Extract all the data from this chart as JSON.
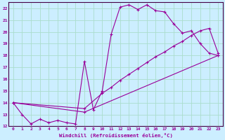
{
  "xlabel": "Windchill (Refroidissement éolien,°C)",
  "bg_color": "#cceeff",
  "grid_color": "#aaddcc",
  "line_color": "#990099",
  "xlim": [
    -0.5,
    23.5
  ],
  "ylim": [
    12,
    22.5
  ],
  "yticks": [
    12,
    13,
    14,
    15,
    16,
    17,
    18,
    19,
    20,
    21,
    22
  ],
  "xticks": [
    0,
    1,
    2,
    3,
    4,
    5,
    6,
    7,
    8,
    9,
    10,
    11,
    12,
    13,
    14,
    15,
    16,
    17,
    18,
    19,
    20,
    21,
    22,
    23
  ],
  "line1_x": [
    0,
    1,
    2,
    3,
    4,
    5,
    6,
    7,
    8,
    9,
    10,
    11,
    12,
    13,
    14,
    15,
    16,
    17,
    18,
    19,
    20,
    21,
    22,
    23
  ],
  "line1_y": [
    14,
    13,
    12.2,
    12.6,
    12.3,
    12.5,
    12.3,
    12.2,
    17.5,
    13.4,
    15.0,
    19.8,
    22.1,
    22.3,
    21.9,
    22.3,
    21.8,
    21.7,
    20.7,
    19.9,
    20.1,
    19.0,
    18.2,
    18.0
  ],
  "line2_x": [
    0,
    8,
    10,
    11,
    12,
    13,
    14,
    15,
    16,
    17,
    18,
    19,
    20,
    21,
    22,
    23
  ],
  "line2_y": [
    14,
    13.5,
    14.8,
    15.3,
    15.9,
    16.4,
    16.9,
    17.4,
    17.9,
    18.3,
    18.8,
    19.2,
    19.7,
    20.1,
    20.3,
    18.2
  ],
  "line3_x": [
    0,
    8,
    23
  ],
  "line3_y": [
    14,
    13.2,
    18.0
  ]
}
